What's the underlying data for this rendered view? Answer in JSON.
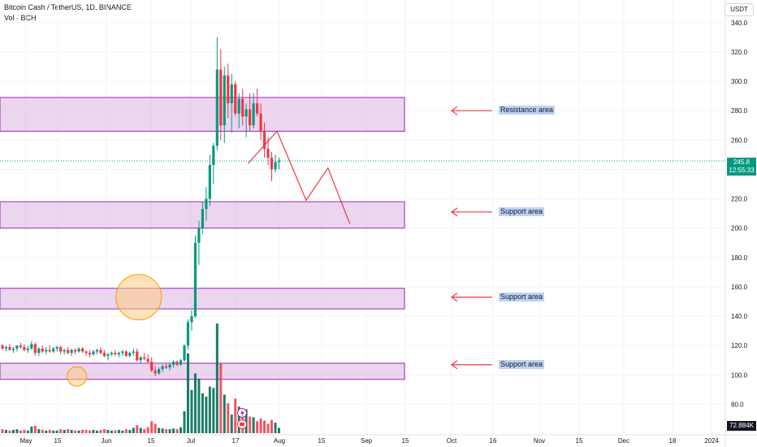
{
  "header": {
    "title": "Bitcoin Cash / TetherUS, 1D, BINANCE",
    "volume": "Vol · BCH",
    "currency_button": "USDT"
  },
  "last_price": {
    "value": "245.8",
    "countdown": "12:55:33",
    "color": "#089981"
  },
  "volume_tag": "72.884K",
  "colors": {
    "up": "#089981",
    "down": "#f23645",
    "zone_fill": "#e1bee7",
    "zone_border": "#9c27b0",
    "arrow": "#f23645",
    "label_bg": "#bbd2f5"
  },
  "zone_labels": [
    {
      "text": "Resistance area",
      "price": 280
    },
    {
      "text": "Support area",
      "price": 211
    },
    {
      "text": "Support area",
      "price": 153
    },
    {
      "text": "Support area",
      "price": 107
    }
  ],
  "chart_data": {
    "type": "candlestick",
    "ylim": [
      70,
      345
    ],
    "y_ticks": [
      "80.0",
      "100.0",
      "120.0",
      "140.0",
      "160.0",
      "180.0",
      "200.0",
      "220.0",
      "240.0",
      "260.0",
      "280.0",
      "300.0",
      "320.0",
      "340.0"
    ],
    "x_ticks": [
      "May",
      "15",
      "Jun",
      "15",
      "Jul",
      "17",
      "Aug",
      "15",
      "Sep",
      "15",
      "Oct",
      "16",
      "Nov",
      "15",
      "Dec",
      "18",
      "2024"
    ],
    "zones": [
      {
        "low": 266,
        "high": 289
      },
      {
        "low": 200,
        "high": 218
      },
      {
        "low": 145,
        "high": 159
      },
      {
        "low": 97,
        "high": 108
      }
    ],
    "highlight_circles": [
      {
        "day": 37,
        "price": 153
      },
      {
        "day": 20,
        "price": 99
      }
    ],
    "projection": [
      {
        "day": 63,
        "price": 244
      },
      {
        "day": 71,
        "price": 266
      },
      {
        "day": 79,
        "price": 219
      },
      {
        "day": 85,
        "price": 241
      },
      {
        "day": 91,
        "price": 203
      }
    ],
    "candles": [
      [
        120,
        121,
        117,
        118,
        6
      ],
      [
        118,
        120,
        116,
        119,
        5
      ],
      [
        119,
        121,
        117,
        117,
        4
      ],
      [
        117,
        119,
        115,
        118,
        5
      ],
      [
        118,
        120,
        116,
        120,
        6
      ],
      [
        120,
        122,
        118,
        119,
        4
      ],
      [
        119,
        121,
        116,
        117,
        5
      ],
      [
        117,
        120,
        115,
        118,
        4
      ],
      [
        118,
        123,
        117,
        121,
        10
      ],
      [
        121,
        122,
        113,
        115,
        11
      ],
      [
        115,
        119,
        113,
        118,
        6
      ],
      [
        118,
        120,
        115,
        116,
        5
      ],
      [
        116,
        119,
        114,
        117,
        4
      ],
      [
        117,
        120,
        115,
        116,
        5
      ],
      [
        116,
        119,
        115,
        118,
        4
      ],
      [
        118,
        120,
        116,
        119,
        4
      ],
      [
        119,
        120,
        114,
        116,
        6
      ],
      [
        116,
        118,
        114,
        117,
        5
      ],
      [
        117,
        119,
        114,
        115,
        6
      ],
      [
        115,
        118,
        113,
        117,
        5
      ],
      [
        117,
        118,
        114,
        116,
        4
      ],
      [
        116,
        119,
        115,
        118,
        4
      ],
      [
        118,
        119,
        115,
        116,
        5
      ],
      [
        116,
        117,
        113,
        115,
        5
      ],
      [
        115,
        117,
        112,
        114,
        4
      ],
      [
        114,
        117,
        113,
        116,
        5
      ],
      [
        116,
        118,
        114,
        117,
        4
      ],
      [
        117,
        119,
        114,
        115,
        5
      ],
      [
        115,
        117,
        112,
        113,
        6
      ],
      [
        113,
        115,
        110,
        114,
        5
      ],
      [
        114,
        116,
        113,
        115,
        4
      ],
      [
        115,
        117,
        113,
        114,
        4
      ],
      [
        114,
        116,
        112,
        115,
        5
      ],
      [
        115,
        117,
        113,
        116,
        4
      ],
      [
        116,
        117,
        112,
        113,
        6
      ],
      [
        113,
        116,
        112,
        115,
        5
      ],
      [
        115,
        118,
        113,
        116,
        8
      ],
      [
        116,
        118,
        109,
        110,
        12
      ],
      [
        110,
        113,
        108,
        112,
        8
      ],
      [
        112,
        115,
        110,
        111,
        6
      ],
      [
        111,
        114,
        108,
        109,
        9
      ],
      [
        109,
        112,
        102,
        103,
        18
      ],
      [
        103,
        106,
        99,
        101,
        14
      ],
      [
        101,
        105,
        100,
        104,
        8
      ],
      [
        104,
        107,
        102,
        106,
        7
      ],
      [
        106,
        108,
        104,
        105,
        6
      ],
      [
        105,
        108,
        103,
        107,
        6
      ],
      [
        107,
        110,
        105,
        109,
        7
      ],
      [
        109,
        110,
        106,
        107,
        6
      ],
      [
        107,
        111,
        106,
        110,
        9
      ],
      [
        110,
        121,
        109,
        120,
        33
      ],
      [
        120,
        138,
        117,
        136,
        120
      ],
      [
        136,
        144,
        130,
        140,
        65
      ],
      [
        140,
        195,
        139,
        190,
        90
      ],
      [
        190,
        205,
        175,
        200,
        82
      ],
      [
        200,
        218,
        196,
        213,
        60
      ],
      [
        213,
        228,
        205,
        220,
        55
      ],
      [
        220,
        250,
        215,
        243,
        70
      ],
      [
        243,
        258,
        230,
        256,
        68
      ],
      [
        256,
        330,
        253,
        308,
        165
      ],
      [
        308,
        322,
        260,
        270,
        105
      ],
      [
        270,
        310,
        258,
        304,
        58
      ],
      [
        304,
        312,
        275,
        285,
        45
      ],
      [
        285,
        305,
        265,
        298,
        28
      ],
      [
        298,
        300,
        276,
        278,
        52
      ],
      [
        278,
        292,
        268,
        288,
        40
      ],
      [
        288,
        295,
        270,
        276,
        32
      ],
      [
        276,
        285,
        262,
        281,
        36
      ],
      [
        281,
        292,
        266,
        270,
        25
      ],
      [
        270,
        292,
        268,
        285,
        24
      ],
      [
        285,
        295,
        276,
        278,
        18
      ],
      [
        278,
        285,
        260,
        266,
        22
      ],
      [
        266,
        272,
        248,
        254,
        19
      ],
      [
        254,
        262,
        243,
        248,
        14
      ],
      [
        248,
        252,
        232,
        240,
        20
      ],
      [
        240,
        250,
        238,
        245,
        16
      ],
      [
        245,
        248,
        240,
        246,
        8
      ]
    ],
    "volume_max": 165
  }
}
